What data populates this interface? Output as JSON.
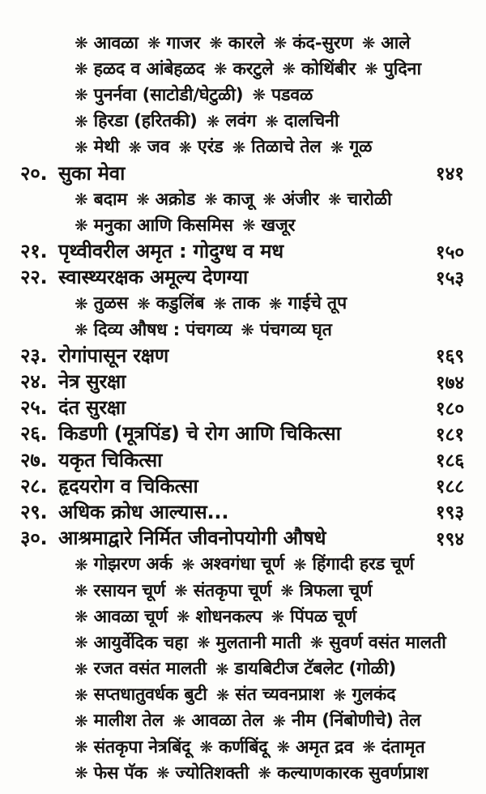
{
  "bullet_icon": "❋",
  "colors": {
    "paper": "#fdfdfb",
    "ink": "#161412"
  },
  "toc_entries": [
    {
      "kind": "subitems",
      "items": [
        "आवळा",
        "गाजर",
        "कारले",
        "कंद-सुरण",
        "आले"
      ]
    },
    {
      "kind": "subitems",
      "items": [
        "हळद व आंबेहळद",
        "करटुले",
        "कोथिंबीर",
        "पुदिना"
      ]
    },
    {
      "kind": "subitems",
      "items": [
        "पुनर्नवा (साटोडी/घेटुळी)",
        "पडवळ"
      ]
    },
    {
      "kind": "subitems",
      "items": [
        "हिरडा (हरितकी)",
        "लवंग",
        "दालचिनी"
      ]
    },
    {
      "kind": "subitems",
      "items": [
        "मेथी",
        "जव",
        "एरंड",
        "तिळाचे तेल",
        "गूळ"
      ]
    },
    {
      "kind": "chapter",
      "number": "२०.",
      "title": "सुका मेवा",
      "page": "१४१"
    },
    {
      "kind": "subitems",
      "items": [
        "बदाम",
        "अक्रोड",
        "काजू",
        "अंजीर",
        "चारोळी"
      ]
    },
    {
      "kind": "subitems",
      "items": [
        "मनुका आणि किसमिस",
        "खजूर"
      ]
    },
    {
      "kind": "chapter",
      "number": "२१.",
      "title": "पृथ्वीवरील अमृत : गोदुग्ध व मध",
      "page": "१५०"
    },
    {
      "kind": "chapter",
      "number": "२२.",
      "title": "स्वास्थ्यरक्षक अमूल्य देणग्या",
      "page": "१५३"
    },
    {
      "kind": "subitems",
      "items": [
        "तुळस",
        "कडुलिंब",
        "ताक",
        "गाईचे तूप"
      ]
    },
    {
      "kind": "subitems",
      "items": [
        "दिव्य औषध : पंचगव्य",
        "पंचगव्य घृत"
      ]
    },
    {
      "kind": "chapter",
      "number": "२३.",
      "title": "रोगांपासून रक्षण",
      "page": "१६९"
    },
    {
      "kind": "chapter",
      "number": "२४.",
      "title": "नेत्र सुरक्षा",
      "page": "१७४"
    },
    {
      "kind": "chapter",
      "number": "२५.",
      "title": "दंत सुरक्षा",
      "page": "१८०"
    },
    {
      "kind": "chapter",
      "number": "२६.",
      "title": "किडणी (मूत्रपिंड) चे रोग आणि चिकित्सा",
      "page": "१८१"
    },
    {
      "kind": "chapter",
      "number": "२७.",
      "title": "यकृत चिकित्सा",
      "page": "१८६"
    },
    {
      "kind": "chapter",
      "number": "२८.",
      "title": "हृदयरोग व चिकित्सा",
      "page": "१८८"
    },
    {
      "kind": "chapter",
      "number": "२९.",
      "title": "अधिक क्रोध आल्यास...",
      "page": "१९३"
    },
    {
      "kind": "chapter",
      "number": "३०.",
      "title": "आश्रमाद्वारे निर्मित जीवनोपयोगी औषधे",
      "page": "१९४"
    },
    {
      "kind": "subitems",
      "items": [
        "गोझरण अर्क",
        "अश्वगंधा चूर्ण",
        "हिंगादी हरड चूर्ण"
      ]
    },
    {
      "kind": "subitems",
      "items": [
        "रसायन चूर्ण",
        "संतकृपा चूर्ण",
        "त्रिफला चूर्ण"
      ]
    },
    {
      "kind": "subitems",
      "items": [
        "आवळा चूर्ण",
        "शोधनकल्प",
        "पिंपळ चूर्ण"
      ]
    },
    {
      "kind": "subitems",
      "items": [
        "आयुर्वेदिक चहा",
        "मुलतानी माती",
        "सुवर्ण वसंत मालती"
      ]
    },
    {
      "kind": "subitems",
      "items": [
        "रजत वसंत मालती",
        "डायबिटीज टॅबलेट (गोळी)"
      ]
    },
    {
      "kind": "subitems",
      "items": [
        "सप्तधातुवर्धक बुटी",
        "संत च्यवनप्राश",
        "गुलकंद"
      ]
    },
    {
      "kind": "subitems",
      "items": [
        "मालीश तेल",
        "आवळा तेल",
        "नीम (निंबोणीचे) तेल"
      ]
    },
    {
      "kind": "subitems",
      "items": [
        "संतकृपा नेत्रबिंदू",
        "कर्णबिंदू",
        "अमृत द्रव",
        "दंतामृत"
      ]
    },
    {
      "kind": "subitems",
      "items": [
        "फेस पॅक",
        "ज्योतिशक्ती",
        "कल्याणकारक सुवर्णप्राश"
      ]
    }
  ]
}
